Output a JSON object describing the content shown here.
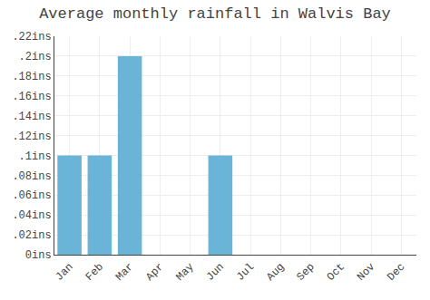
{
  "chart_data": {
    "type": "bar",
    "title": "Average monthly rainfall in Walvis Bay",
    "categories": [
      "Jan",
      "Feb",
      "Mar",
      "Apr",
      "May",
      "Jun",
      "Jul",
      "Aug",
      "Sep",
      "Oct",
      "Nov",
      "Dec"
    ],
    "values": [
      0.1,
      0.1,
      0.2,
      0.0,
      0.0,
      0.1,
      0.0,
      0.0,
      0.0,
      0.0,
      0.0,
      0.0
    ],
    "color": "#6ab4d8",
    "ylim": [
      0,
      0.22
    ],
    "yticks": [
      {
        "value": 0,
        "label": "0ins"
      },
      {
        "value": 0.02,
        "label": ".02ins"
      },
      {
        "value": 0.04,
        "label": ".04ins"
      },
      {
        "value": 0.06,
        "label": ".06ins"
      },
      {
        "value": 0.08,
        "label": ".08ins"
      },
      {
        "value": 0.1,
        "label": ".1ins"
      },
      {
        "value": 0.12,
        "label": ".12ins"
      },
      {
        "value": 0.14,
        "label": ".14ins"
      },
      {
        "value": 0.16,
        "label": ".16ins"
      },
      {
        "value": 0.18,
        "label": ".18ins"
      },
      {
        "value": 0.2,
        "label": ".2ins"
      },
      {
        "value": 0.22,
        "label": ".22ins"
      }
    ],
    "grid": true
  }
}
